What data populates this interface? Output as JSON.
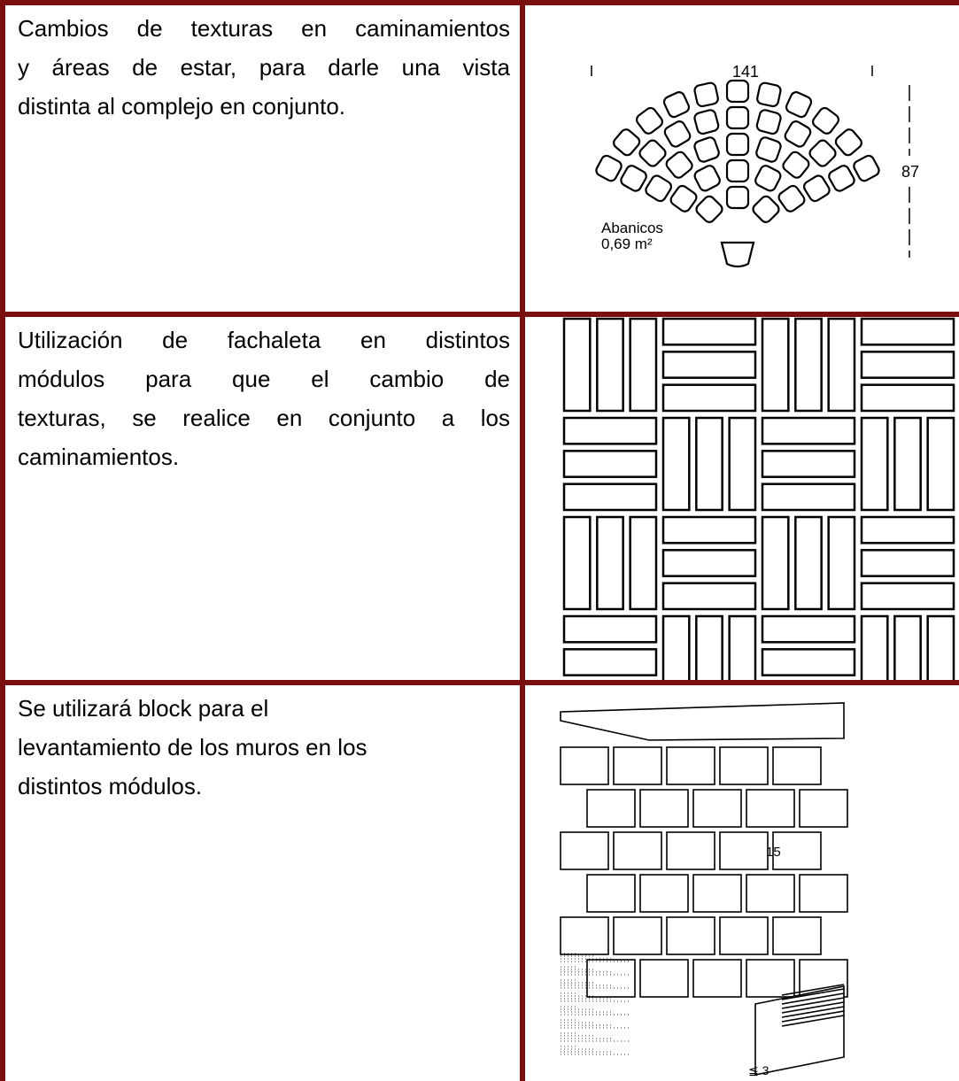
{
  "table": {
    "rows": [
      {
        "lines": [
          "Cambios de texturas en caminamientos",
          "y áreas de estar, para darle una vista",
          "distinta al complejo en conjunto."
        ],
        "figure": {
          "width_label": "141",
          "height_label": "87",
          "caption": "Abanicos",
          "area": "0,69 m²"
        }
      },
      {
        "lines": [
          "Utilización de fachaleta en distintos",
          "módulos para que el cambio de",
          "texturas, se realice en conjunto a los",
          "caminamientos."
        ]
      },
      {
        "lines": [
          "Se utilizará block para el",
          "levantamiento de los muros en los",
          "distintos módulos."
        ],
        "figure": {
          "height_label": "15",
          "gap_label": "≦ 3"
        }
      }
    ]
  }
}
